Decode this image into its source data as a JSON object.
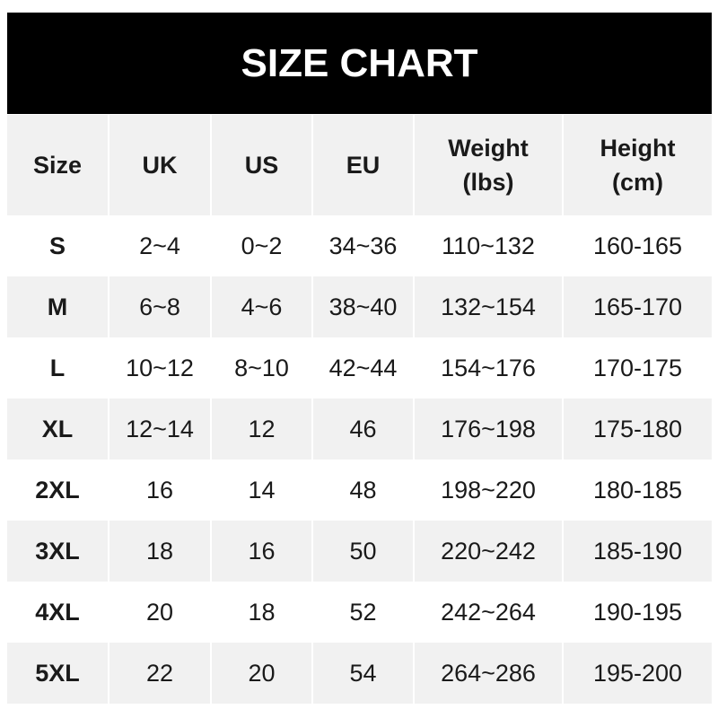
{
  "title": "SIZE CHART",
  "headers": [
    "Size",
    "UK",
    "US",
    "EU",
    "Weight (lbs)",
    "Height (cm)"
  ],
  "rows": [
    [
      "S",
      "2~4",
      "0~2",
      "34~36",
      "110~132",
      "160-165"
    ],
    [
      "M",
      "6~8",
      "4~6",
      "38~40",
      "132~154",
      "165-170"
    ],
    [
      "L",
      "10~12",
      "8~10",
      "42~44",
      "154~176",
      "170-175"
    ],
    [
      "XL",
      "12~14",
      "12",
      "46",
      "176~198",
      "175-180"
    ],
    [
      "2XL",
      "16",
      "14",
      "48",
      "198~220",
      "180-185"
    ],
    [
      "3XL",
      "18",
      "16",
      "50",
      "220~242",
      "185-190"
    ],
    [
      "4XL",
      "20",
      "18",
      "52",
      "242~264",
      "190-195"
    ],
    [
      "5XL",
      "22",
      "20",
      "54",
      "264~286",
      "195-200"
    ]
  ]
}
